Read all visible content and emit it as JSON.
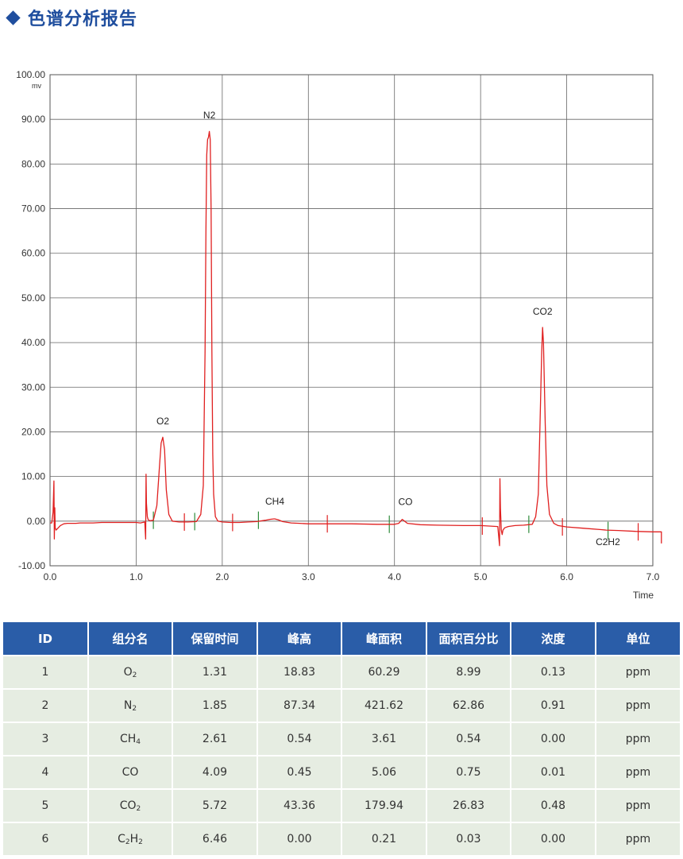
{
  "header": {
    "title": "色谱分析报告"
  },
  "colors": {
    "accent": "#1f4e9e",
    "table_header": "#2a5da8",
    "table_row": "#e6ede2",
    "trace": "#e02020",
    "marker_red": "#e02020",
    "marker_green": "#2e8b3a"
  },
  "chart_data": {
    "type": "line",
    "ylabel": "mv",
    "xlabel": "Time",
    "xlim": [
      0,
      7
    ],
    "ylim": [
      -10,
      100
    ],
    "grid": true,
    "x_ticks": [
      "0.0",
      "1.0",
      "2.0",
      "3.0",
      "4.0",
      "5.0",
      "6.0",
      "7.0"
    ],
    "y_ticks": [
      "100.00",
      "90.00",
      "80.00",
      "70.00",
      "60.00",
      "50.00",
      "40.00",
      "30.00",
      "20.00",
      "10.00",
      "0.00",
      "-10.00"
    ],
    "peak_labels": [
      {
        "text": "O2",
        "x": 1.31,
        "y": 18.83
      },
      {
        "text": "N2",
        "x": 1.85,
        "y": 87.34
      },
      {
        "text": "CH4",
        "x": 2.61,
        "y": 0.54
      },
      {
        "text": "CO",
        "x": 4.09,
        "y": 0.45
      },
      {
        "text": "CO2",
        "x": 5.72,
        "y": 43.36
      },
      {
        "text": "C2H2",
        "x": 6.46,
        "y": 0.0
      }
    ],
    "series": [
      {
        "x": [
          0.0,
          0.02,
          0.035,
          0.045,
          0.05,
          0.055,
          0.06,
          0.07,
          0.09,
          0.12,
          0.16,
          0.2,
          0.25,
          0.3,
          0.35,
          0.4,
          0.5,
          0.6,
          0.7,
          0.8,
          0.9,
          1.0,
          1.05,
          1.1,
          1.11,
          1.115,
          1.12,
          1.13,
          1.14,
          1.16,
          1.2,
          1.24,
          1.27,
          1.29,
          1.31,
          1.33,
          1.35,
          1.38,
          1.42,
          1.5,
          1.6,
          1.7,
          1.75,
          1.78,
          1.8,
          1.81,
          1.82,
          1.83,
          1.84,
          1.85,
          1.86,
          1.87,
          1.88,
          1.89,
          1.9,
          1.92,
          1.95,
          2.0,
          2.1,
          2.2,
          2.3,
          2.4,
          2.5,
          2.55,
          2.6,
          2.61,
          2.65,
          2.7,
          2.8,
          2.9,
          3.0,
          3.2,
          3.5,
          3.8,
          4.0,
          4.05,
          4.09,
          4.15,
          4.3,
          4.5,
          4.8,
          5.0,
          5.1,
          5.2,
          5.22,
          5.225,
          5.23,
          5.24,
          5.25,
          5.26,
          5.28,
          5.32,
          5.4,
          5.5,
          5.6,
          5.64,
          5.67,
          5.69,
          5.71,
          5.72,
          5.73,
          5.75,
          5.77,
          5.8,
          5.85,
          5.9,
          6.0,
          6.2,
          6.4,
          6.46,
          6.6,
          6.8,
          7.0,
          7.1,
          7.1
        ],
        "values": [
          -0.4,
          -0.4,
          2.0,
          9.0,
          -4.0,
          3.0,
          -1.5,
          -2.0,
          -1.6,
          -1.0,
          -0.6,
          -0.5,
          -0.5,
          -0.5,
          -0.4,
          -0.4,
          -0.4,
          -0.3,
          -0.3,
          -0.3,
          -0.3,
          -0.3,
          -0.4,
          -0.2,
          -4.0,
          10.5,
          4.0,
          1.0,
          0.3,
          0.1,
          0.2,
          3.5,
          12.0,
          17.5,
          18.8,
          16.0,
          7.0,
          1.5,
          0.0,
          -0.2,
          -0.2,
          -0.1,
          1.5,
          8.0,
          38.0,
          65.0,
          82.0,
          85.5,
          86.0,
          87.3,
          85.5,
          70.0,
          38.0,
          15.0,
          6.0,
          1.0,
          0.0,
          -0.2,
          -0.3,
          -0.3,
          -0.2,
          -0.1,
          0.2,
          0.4,
          0.5,
          0.5,
          0.3,
          -0.1,
          -0.4,
          -0.5,
          -0.6,
          -0.6,
          -0.6,
          -0.7,
          -0.7,
          -0.5,
          0.4,
          -0.5,
          -0.8,
          -0.9,
          -1.0,
          -1.0,
          -1.1,
          -1.2,
          -5.5,
          9.5,
          3.0,
          -2.0,
          -3.0,
          -2.0,
          -1.5,
          -1.2,
          -1.0,
          -0.9,
          -0.7,
          1.0,
          6.0,
          22.0,
          38.0,
          43.4,
          40.0,
          22.0,
          8.0,
          1.5,
          -0.5,
          -1.0,
          -1.3,
          -1.6,
          -1.9,
          -2.0,
          -2.1,
          -2.3,
          -2.4,
          -2.4,
          -5.0
        ]
      }
    ],
    "markers": {
      "red": [
        1.56,
        2.12,
        3.22,
        5.02,
        5.95,
        6.83
      ],
      "green": [
        1.2,
        1.68,
        2.42,
        3.94,
        5.56,
        6.48
      ]
    }
  },
  "table": {
    "headers": [
      "ID",
      "组分名",
      "保留时间",
      "峰高",
      "峰面积",
      "面积百分比",
      "浓度",
      "单位"
    ],
    "rows": [
      {
        "id": "1",
        "name_base": "O",
        "name_sub": "2",
        "name_rest": "",
        "name_sub2": "",
        "rt": "1.31",
        "height": "18.83",
        "area": "60.29",
        "area_pct": "8.99",
        "conc": "0.13",
        "unit": "ppm"
      },
      {
        "id": "2",
        "name_base": "N",
        "name_sub": "2",
        "name_rest": "",
        "name_sub2": "",
        "rt": "1.85",
        "height": "87.34",
        "area": "421.62",
        "area_pct": "62.86",
        "conc": "0.91",
        "unit": "ppm"
      },
      {
        "id": "3",
        "name_base": "CH",
        "name_sub": "4",
        "name_rest": "",
        "name_sub2": "",
        "rt": "2.61",
        "height": "0.54",
        "area": "3.61",
        "area_pct": "0.54",
        "conc": "0.00",
        "unit": "ppm"
      },
      {
        "id": "4",
        "name_base": "CO",
        "name_sub": "",
        "name_rest": "",
        "name_sub2": "",
        "rt": "4.09",
        "height": "0.45",
        "area": "5.06",
        "area_pct": "0.75",
        "conc": "0.01",
        "unit": "ppm"
      },
      {
        "id": "5",
        "name_base": "CO",
        "name_sub": "2",
        "name_rest": "",
        "name_sub2": "",
        "rt": "5.72",
        "height": "43.36",
        "area": "179.94",
        "area_pct": "26.83",
        "conc": "0.48",
        "unit": "ppm"
      },
      {
        "id": "6",
        "name_base": "C",
        "name_sub": "2",
        "name_rest": "H",
        "name_sub2": "2",
        "rt": "6.46",
        "height": "0.00",
        "area": "0.21",
        "area_pct": "0.03",
        "conc": "0.00",
        "unit": "ppm"
      }
    ]
  }
}
